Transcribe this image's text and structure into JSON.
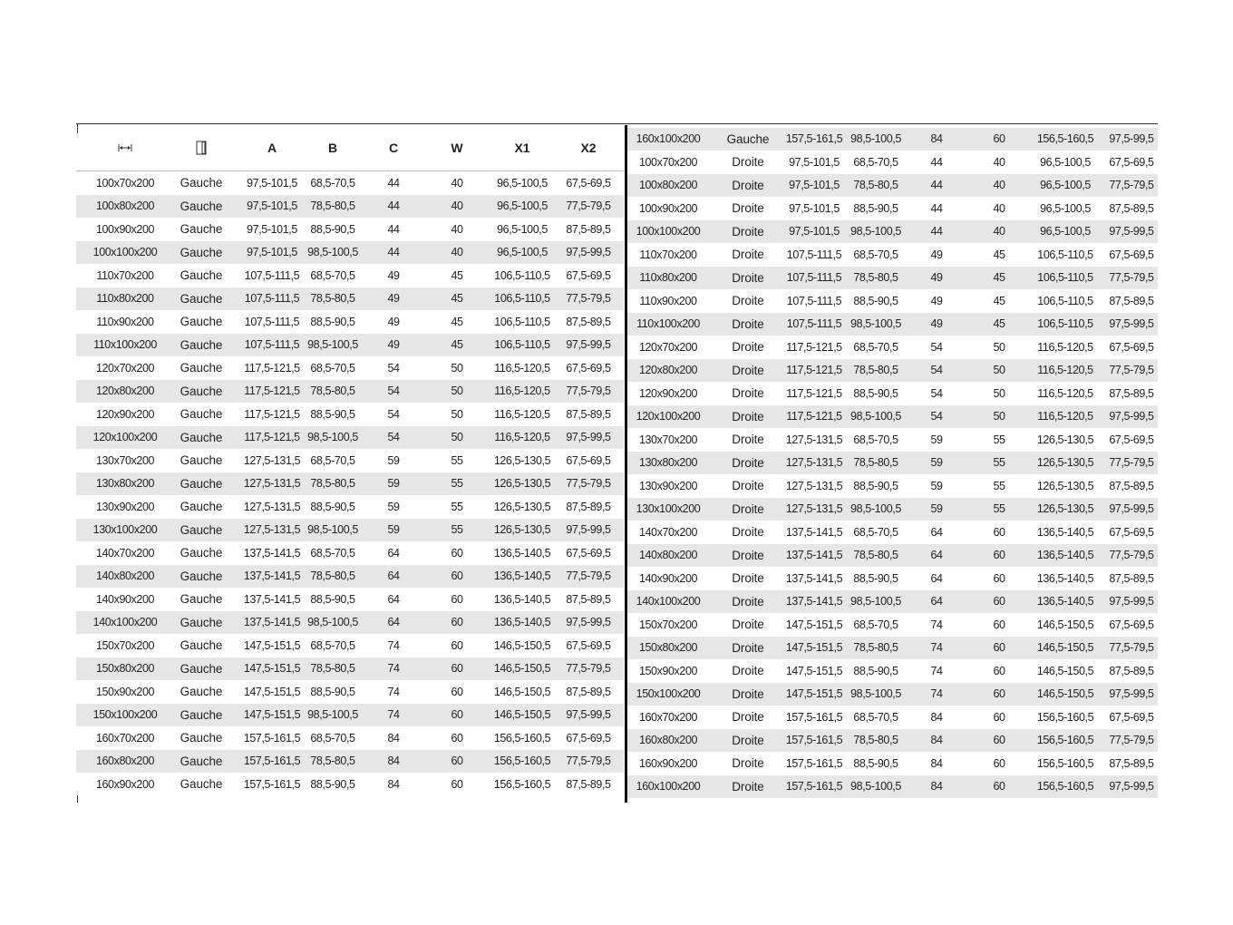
{
  "header": {
    "columns": [
      {
        "icon": "width-arrows-icon",
        "label": ""
      },
      {
        "icon": "door-icon",
        "label": ""
      },
      {
        "label": "A"
      },
      {
        "label": "B"
      },
      {
        "label": "C"
      },
      {
        "label": "W"
      },
      {
        "label": "X1"
      },
      {
        "label": "X2"
      }
    ]
  },
  "left": {
    "rows": [
      [
        "100x70x200",
        "Gauche",
        "97,5-101,5",
        "68,5-70,5",
        "44",
        "40",
        "96,5-100,5",
        "67,5-69,5"
      ],
      [
        "100x80x200",
        "Gauche",
        "97,5-101,5",
        "78,5-80,5",
        "44",
        "40",
        "96,5-100,5",
        "77,5-79,5"
      ],
      [
        "100x90x200",
        "Gauche",
        "97,5-101,5",
        "88,5-90,5",
        "44",
        "40",
        "96,5-100,5",
        "87,5-89,5"
      ],
      [
        "100x100x200",
        "Gauche",
        "97,5-101,5",
        "98,5-100,5",
        "44",
        "40",
        "96,5-100,5",
        "97,5-99,5"
      ],
      [
        "110x70x200",
        "Gauche",
        "107,5-111,5",
        "68,5-70,5",
        "49",
        "45",
        "106,5-110,5",
        "67,5-69,5"
      ],
      [
        "110x80x200",
        "Gauche",
        "107,5-111,5",
        "78,5-80,5",
        "49",
        "45",
        "106,5-110,5",
        "77,5-79,5"
      ],
      [
        "110x90x200",
        "Gauche",
        "107,5-111,5",
        "88,5-90,5",
        "49",
        "45",
        "106,5-110,5",
        "87,5-89,5"
      ],
      [
        "110x100x200",
        "Gauche",
        "107,5-111,5",
        "98,5-100,5",
        "49",
        "45",
        "106,5-110,5",
        "97,5-99,5"
      ],
      [
        "120x70x200",
        "Gauche",
        "117,5-121,5",
        "68,5-70,5",
        "54",
        "50",
        "116,5-120,5",
        "67,5-69,5"
      ],
      [
        "120x80x200",
        "Gauche",
        "117,5-121,5",
        "78,5-80,5",
        "54",
        "50",
        "116,5-120,5",
        "77,5-79,5"
      ],
      [
        "120x90x200",
        "Gauche",
        "117,5-121,5",
        "88,5-90,5",
        "54",
        "50",
        "116,5-120,5",
        "87,5-89,5"
      ],
      [
        "120x100x200",
        "Gauche",
        "117,5-121,5",
        "98,5-100,5",
        "54",
        "50",
        "116,5-120,5",
        "97,5-99,5"
      ],
      [
        "130x70x200",
        "Gauche",
        "127,5-131,5",
        "68,5-70,5",
        "59",
        "55",
        "126,5-130,5",
        "67,5-69,5"
      ],
      [
        "130x80x200",
        "Gauche",
        "127,5-131,5",
        "78,5-80,5",
        "59",
        "55",
        "126,5-130,5",
        "77,5-79,5"
      ],
      [
        "130x90x200",
        "Gauche",
        "127,5-131,5",
        "88,5-90,5",
        "59",
        "55",
        "126,5-130,5",
        "87,5-89,5"
      ],
      [
        "130x100x200",
        "Gauche",
        "127,5-131,5",
        "98,5-100,5",
        "59",
        "55",
        "126,5-130,5",
        "97,5-99,5"
      ],
      [
        "140x70x200",
        "Gauche",
        "137,5-141,5",
        "68,5-70,5",
        "64",
        "60",
        "136,5-140,5",
        "67,5-69,5"
      ],
      [
        "140x80x200",
        "Gauche",
        "137,5-141,5",
        "78,5-80,5",
        "64",
        "60",
        "136,5-140,5",
        "77,5-79,5"
      ],
      [
        "140x90x200",
        "Gauche",
        "137,5-141,5",
        "88,5-90,5",
        "64",
        "60",
        "136,5-140,5",
        "87,5-89,5"
      ],
      [
        "140x100x200",
        "Gauche",
        "137,5-141,5",
        "98,5-100,5",
        "64",
        "60",
        "136,5-140,5",
        "97,5-99,5"
      ],
      [
        "150x70x200",
        "Gauche",
        "147,5-151,5",
        "68,5-70,5",
        "74",
        "60",
        "146,5-150,5",
        "67,5-69,5"
      ],
      [
        "150x80x200",
        "Gauche",
        "147,5-151,5",
        "78,5-80,5",
        "74",
        "60",
        "146,5-150,5",
        "77,5-79,5"
      ],
      [
        "150x90x200",
        "Gauche",
        "147,5-151,5",
        "88,5-90,5",
        "74",
        "60",
        "146,5-150,5",
        "87,5-89,5"
      ],
      [
        "150x100x200",
        "Gauche",
        "147,5-151,5",
        "98,5-100,5",
        "74",
        "60",
        "146,5-150,5",
        "97,5-99,5"
      ],
      [
        "160x70x200",
        "Gauche",
        "157,5-161,5",
        "68,5-70,5",
        "84",
        "60",
        "156,5-160,5",
        "67,5-69,5"
      ],
      [
        "160x80x200",
        "Gauche",
        "157,5-161,5",
        "78,5-80,5",
        "84",
        "60",
        "156,5-160,5",
        "77,5-79,5"
      ],
      [
        "160x90x200",
        "Gauche",
        "157,5-161,5",
        "88,5-90,5",
        "84",
        "60",
        "156,5-160,5",
        "87,5-89,5"
      ]
    ]
  },
  "right": {
    "rows": [
      [
        "160x100x200",
        "Gauche",
        "157,5-161,5",
        "98,5-100,5",
        "84",
        "60",
        "156,5-160,5",
        "97,5-99,5"
      ],
      [
        "100x70x200",
        "Droite",
        "97,5-101,5",
        "68,5-70,5",
        "44",
        "40",
        "96,5-100,5",
        "67,5-69,5"
      ],
      [
        "100x80x200",
        "Droite",
        "97,5-101,5",
        "78,5-80,5",
        "44",
        "40",
        "96,5-100,5",
        "77,5-79,5"
      ],
      [
        "100x90x200",
        "Droite",
        "97,5-101,5",
        "88,5-90,5",
        "44",
        "40",
        "96,5-100,5",
        "87,5-89,5"
      ],
      [
        "100x100x200",
        "Droite",
        "97,5-101,5",
        "98,5-100,5",
        "44",
        "40",
        "96,5-100,5",
        "97,5-99,5"
      ],
      [
        "110x70x200",
        "Droite",
        "107,5-111,5",
        "68,5-70,5",
        "49",
        "45",
        "106,5-110,5",
        "67,5-69,5"
      ],
      [
        "110x80x200",
        "Droite",
        "107,5-111,5",
        "78,5-80,5",
        "49",
        "45",
        "106,5-110,5",
        "77,5-79,5"
      ],
      [
        "110x90x200",
        "Droite",
        "107,5-111,5",
        "88,5-90,5",
        "49",
        "45",
        "106,5-110,5",
        "87,5-89,5"
      ],
      [
        "110x100x200",
        "Droite",
        "107,5-111,5",
        "98,5-100,5",
        "49",
        "45",
        "106,5-110,5",
        "97,5-99,5"
      ],
      [
        "120x70x200",
        "Droite",
        "117,5-121,5",
        "68,5-70,5",
        "54",
        "50",
        "116,5-120,5",
        "67,5-69,5"
      ],
      [
        "120x80x200",
        "Droite",
        "117,5-121,5",
        "78,5-80,5",
        "54",
        "50",
        "116,5-120,5",
        "77,5-79,5"
      ],
      [
        "120x90x200",
        "Droite",
        "117,5-121,5",
        "88,5-90,5",
        "54",
        "50",
        "116,5-120,5",
        "87,5-89,5"
      ],
      [
        "120x100x200",
        "Droite",
        "117,5-121,5",
        "98,5-100,5",
        "54",
        "50",
        "116,5-120,5",
        "97,5-99,5"
      ],
      [
        "130x70x200",
        "Droite",
        "127,5-131,5",
        "68,5-70,5",
        "59",
        "55",
        "126,5-130,5",
        "67,5-69,5"
      ],
      [
        "130x80x200",
        "Droite",
        "127,5-131,5",
        "78,5-80,5",
        "59",
        "55",
        "126,5-130,5",
        "77,5-79,5"
      ],
      [
        "130x90x200",
        "Droite",
        "127,5-131,5",
        "88,5-90,5",
        "59",
        "55",
        "126,5-130,5",
        "87,5-89,5"
      ],
      [
        "130x100x200",
        "Droite",
        "127,5-131,5",
        "98,5-100,5",
        "59",
        "55",
        "126,5-130,5",
        "97,5-99,5"
      ],
      [
        "140x70x200",
        "Droite",
        "137,5-141,5",
        "68,5-70,5",
        "64",
        "60",
        "136,5-140,5",
        "67,5-69,5"
      ],
      [
        "140x80x200",
        "Droite",
        "137,5-141,5",
        "78,5-80,5",
        "64",
        "60",
        "136,5-140,5",
        "77,5-79,5"
      ],
      [
        "140x90x200",
        "Droite",
        "137,5-141,5",
        "88,5-90,5",
        "64",
        "60",
        "136,5-140,5",
        "87,5-89,5"
      ],
      [
        "140x100x200",
        "Droite",
        "137,5-141,5",
        "98,5-100,5",
        "64",
        "60",
        "136,5-140,5",
        "97,5-99,5"
      ],
      [
        "150x70x200",
        "Droite",
        "147,5-151,5",
        "68,5-70,5",
        "74",
        "60",
        "146,5-150,5",
        "67,5-69,5"
      ],
      [
        "150x80x200",
        "Droite",
        "147,5-151,5",
        "78,5-80,5",
        "74",
        "60",
        "146,5-150,5",
        "77,5-79,5"
      ],
      [
        "150x90x200",
        "Droite",
        "147,5-151,5",
        "88,5-90,5",
        "74",
        "60",
        "146,5-150,5",
        "87,5-89,5"
      ],
      [
        "150x100x200",
        "Droite",
        "147,5-151,5",
        "98,5-100,5",
        "74",
        "60",
        "146,5-150,5",
        "97,5-99,5"
      ],
      [
        "160x70x200",
        "Droite",
        "157,5-161,5",
        "68,5-70,5",
        "84",
        "60",
        "156,5-160,5",
        "67,5-69,5"
      ],
      [
        "160x80x200",
        "Droite",
        "157,5-161,5",
        "78,5-80,5",
        "84",
        "60",
        "156,5-160,5",
        "77,5-79,5"
      ],
      [
        "160x90x200",
        "Droite",
        "157,5-161,5",
        "88,5-90,5",
        "84",
        "60",
        "156,5-160,5",
        "87,5-89,5"
      ],
      [
        "160x100x200",
        "Droite",
        "157,5-161,5",
        "98,5-100,5",
        "84",
        "60",
        "156,5-160,5",
        "97,5-99,5"
      ]
    ]
  }
}
